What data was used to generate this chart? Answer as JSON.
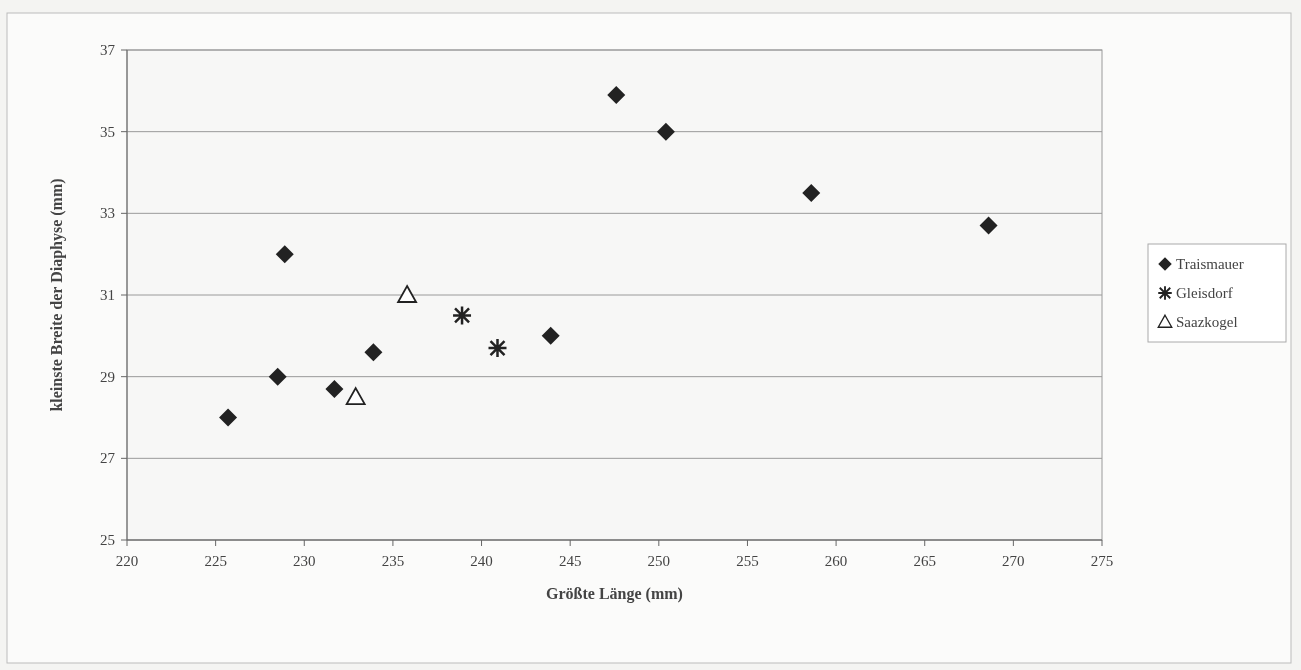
{
  "chart_data": {
    "type": "scatter",
    "xlabel": "Größte Länge (mm)",
    "ylabel": "kleinste Breite der Diaphyse (mm)",
    "xlim": [
      220,
      275
    ],
    "xticks": [
      220,
      225,
      230,
      235,
      240,
      245,
      250,
      255,
      260,
      265,
      270,
      275
    ],
    "ylim": [
      25,
      37
    ],
    "yticks": [
      25,
      27,
      29,
      31,
      33,
      35,
      37
    ],
    "grid": "y",
    "legend": "right",
    "series": [
      {
        "name": "Traismauer",
        "color": "#222222",
        "marker": "diamond",
        "x": [
          225.7,
          228.5,
          228.9,
          231.7,
          233.9,
          243.9,
          247.6,
          250.4,
          258.6,
          268.6
        ],
        "values": [
          28.0,
          29.0,
          32.0,
          28.7,
          29.6,
          30.0,
          35.9,
          35.0,
          33.5,
          32.7
        ]
      },
      {
        "name": "Gleisdorf",
        "color": "#222222",
        "marker": "cross",
        "x": [
          238.9,
          240.9
        ],
        "values": [
          30.5,
          29.7
        ]
      },
      {
        "name": "Saazkogel",
        "color": "#222222",
        "marker": "triangle",
        "x": [
          235.8,
          232.9
        ],
        "values": [
          31.0,
          28.5
        ]
      }
    ]
  }
}
